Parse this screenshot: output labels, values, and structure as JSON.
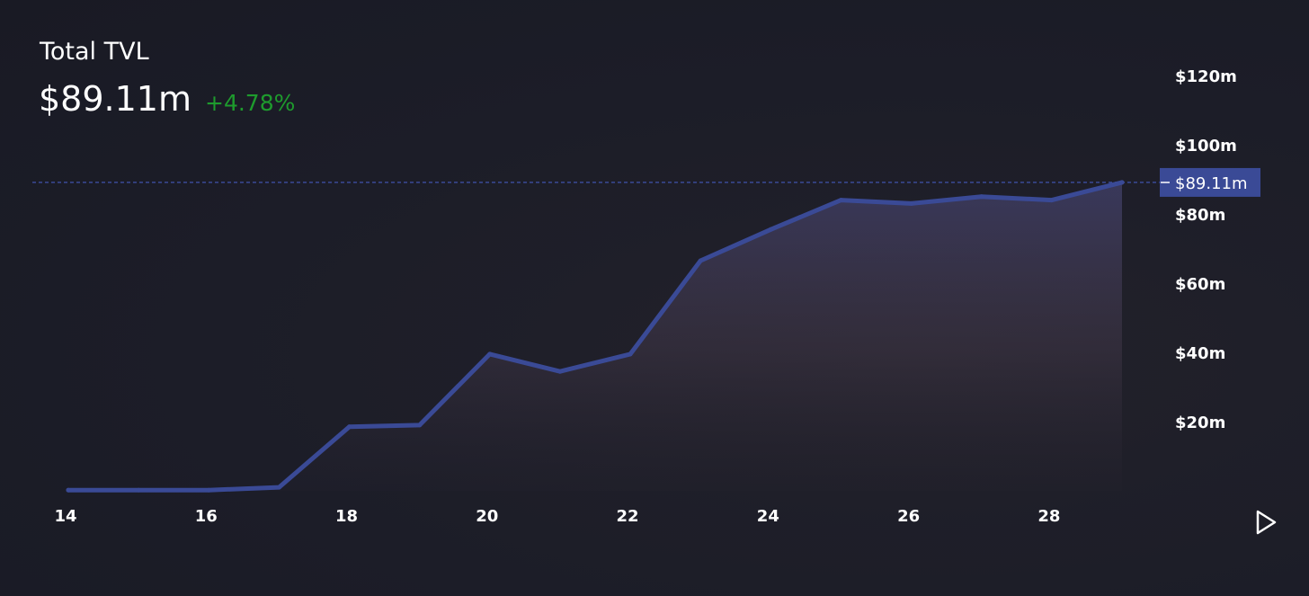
{
  "header": {
    "title": "Total TVL",
    "value": "$89.11m",
    "change": "+4.78%"
  },
  "colors": {
    "background": "#1d1e2a",
    "line": "#3a4a96",
    "price_tag_bg": "#3a4a96",
    "change_positive": "#1e9b2d",
    "axis_text": "#ffffff"
  },
  "controls": {
    "play_icon": "play-triangle-icon"
  },
  "chart_data": {
    "type": "area",
    "title": "Total TVL",
    "x": [
      14,
      15,
      16,
      17,
      18,
      19,
      20,
      21,
      22,
      23,
      24,
      25,
      26,
      27,
      28,
      29
    ],
    "values": [
      0.2,
      0.2,
      0.2,
      1,
      18.5,
      19,
      39.5,
      34.5,
      39.5,
      66.5,
      75.5,
      84,
      83,
      85,
      84,
      89.11
    ],
    "series": [
      {
        "name": "",
        "values": [
          0.2,
          0.2,
          0.2,
          1,
          18.5,
          19,
          39.5,
          34.5,
          39.5,
          66.5,
          75.5,
          84,
          83,
          85,
          84,
          89.11
        ]
      }
    ],
    "x_tick_labels": [
      "14",
      "16",
      "18",
      "20",
      "22",
      "24",
      "26",
      "28"
    ],
    "x_ticks": [
      14,
      16,
      18,
      20,
      22,
      24,
      26,
      28
    ],
    "y_tick_labels": [
      "$20m",
      "$40m",
      "$60m",
      "$80m",
      "$100m",
      "$120m"
    ],
    "y_ticks": [
      20,
      40,
      60,
      80,
      100,
      120
    ],
    "xlim": [
      14,
      29
    ],
    "ylim": [
      0,
      120
    ],
    "y_axis_side": "right",
    "current_value": 89.11,
    "current_value_label": "$89.11m",
    "xlabel": "",
    "ylabel": "",
    "grid": false,
    "legend": "none"
  }
}
